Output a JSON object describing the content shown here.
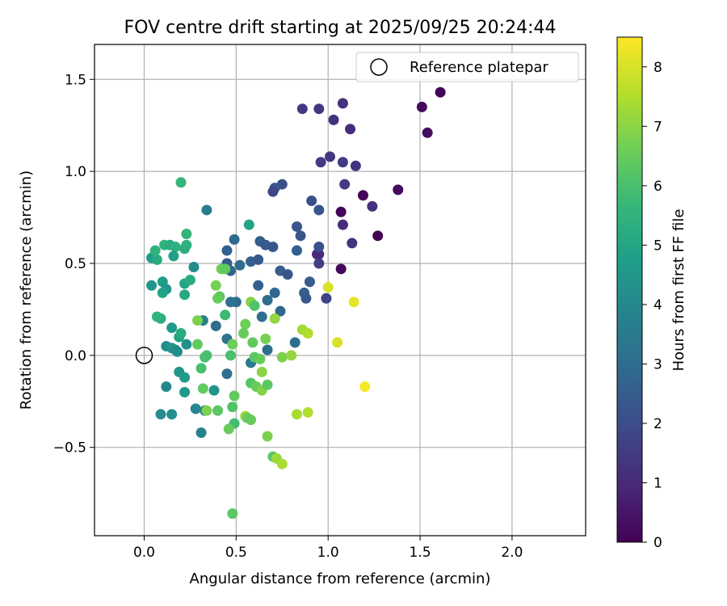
{
  "chart_data": {
    "type": "scatter",
    "title": "FOV centre drift starting at 2025/09/25 20:24:44",
    "xlabel": "Angular distance from reference (arcmin)",
    "ylabel": "Rotation from reference (arcmin)",
    "xlim": [
      -0.27,
      2.4
    ],
    "ylim": [
      -0.98,
      1.69
    ],
    "xticks": [
      0.0,
      0.5,
      1.0,
      1.5,
      2.0
    ],
    "xtick_labels": [
      "0.0",
      "0.5",
      "1.0",
      "1.5",
      "2.0"
    ],
    "yticks": [
      -0.5,
      0.0,
      0.5,
      1.0,
      1.5
    ],
    "ytick_labels": [
      "−0.5",
      "0.0",
      "0.5",
      "1.0",
      "1.5"
    ],
    "grid": true,
    "legend": {
      "position": "top-right",
      "entries": [
        "Reference platepar"
      ]
    },
    "reference_point": {
      "x": 0.0,
      "y": 0.0,
      "marker": "hollow-circle",
      "color": "#000000"
    },
    "colorbar": {
      "label": "Hours from first FF file",
      "range": [
        0,
        8.5
      ],
      "ticks": [
        0,
        1,
        2,
        3,
        4,
        5,
        6,
        7,
        8
      ],
      "tick_labels": [
        "0",
        "1",
        "2",
        "3",
        "4",
        "5",
        "6",
        "7",
        "8"
      ],
      "colormap_stops": [
        "#440154",
        "#482878",
        "#3e4989",
        "#31688e",
        "#26828e",
        "#1f9e89",
        "#35b779",
        "#6ece58",
        "#b5de2b",
        "#fde725"
      ]
    },
    "points": [
      {
        "x": 1.61,
        "y": 1.43,
        "t": 0.1
      },
      {
        "x": 1.51,
        "y": 1.35,
        "t": 0.2
      },
      {
        "x": 1.54,
        "y": 1.21,
        "t": 0.3
      },
      {
        "x": 1.38,
        "y": 0.9,
        "t": 0.2
      },
      {
        "x": 1.19,
        "y": 0.87,
        "t": 0.1
      },
      {
        "x": 1.27,
        "y": 0.65,
        "t": 0.0
      },
      {
        "x": 1.07,
        "y": 0.78,
        "t": 0.1
      },
      {
        "x": 1.07,
        "y": 0.47,
        "t": 0.2
      },
      {
        "x": 1.08,
        "y": 1.37,
        "t": 1.2
      },
      {
        "x": 0.95,
        "y": 1.34,
        "t": 1.4
      },
      {
        "x": 0.86,
        "y": 1.34,
        "t": 1.5
      },
      {
        "x": 1.12,
        "y": 1.23,
        "t": 1.1
      },
      {
        "x": 1.03,
        "y": 1.28,
        "t": 1.2
      },
      {
        "x": 1.01,
        "y": 1.08,
        "t": 1.4
      },
      {
        "x": 0.96,
        "y": 1.05,
        "t": 1.5
      },
      {
        "x": 1.08,
        "y": 1.05,
        "t": 1.5
      },
      {
        "x": 1.15,
        "y": 1.03,
        "t": 1.3
      },
      {
        "x": 1.09,
        "y": 0.93,
        "t": 1.5
      },
      {
        "x": 1.24,
        "y": 0.81,
        "t": 1.2
      },
      {
        "x": 1.08,
        "y": 0.71,
        "t": 1.1
      },
      {
        "x": 1.13,
        "y": 0.61,
        "t": 1.3
      },
      {
        "x": 0.95,
        "y": 0.55,
        "t": 1.2
      },
      {
        "x": 0.94,
        "y": 0.55,
        "t": 1.0
      },
      {
        "x": 0.95,
        "y": 0.5,
        "t": 1.6
      },
      {
        "x": 0.99,
        "y": 0.31,
        "t": 1.7
      },
      {
        "x": 0.75,
        "y": 0.93,
        "t": 2.1
      },
      {
        "x": 0.71,
        "y": 0.91,
        "t": 2.3
      },
      {
        "x": 0.7,
        "y": 0.89,
        "t": 1.8
      },
      {
        "x": 0.91,
        "y": 0.84,
        "t": 2.1
      },
      {
        "x": 0.95,
        "y": 0.79,
        "t": 2.3
      },
      {
        "x": 0.83,
        "y": 0.7,
        "t": 2.3
      },
      {
        "x": 0.85,
        "y": 0.65,
        "t": 2.3
      },
      {
        "x": 0.95,
        "y": 0.59,
        "t": 2.1
      },
      {
        "x": 0.83,
        "y": 0.57,
        "t": 2.6
      },
      {
        "x": 0.63,
        "y": 0.62,
        "t": 2.5
      },
      {
        "x": 0.66,
        "y": 0.6,
        "t": 2.4
      },
      {
        "x": 0.7,
        "y": 0.59,
        "t": 2.3
      },
      {
        "x": 0.58,
        "y": 0.51,
        "t": 2.6
      },
      {
        "x": 0.62,
        "y": 0.52,
        "t": 2.4
      },
      {
        "x": 0.74,
        "y": 0.46,
        "t": 2.5
      },
      {
        "x": 0.78,
        "y": 0.44,
        "t": 2.3
      },
      {
        "x": 0.9,
        "y": 0.4,
        "t": 2.5
      },
      {
        "x": 0.62,
        "y": 0.38,
        "t": 2.6
      },
      {
        "x": 0.71,
        "y": 0.34,
        "t": 2.8
      },
      {
        "x": 0.87,
        "y": 0.34,
        "t": 2.6
      },
      {
        "x": 0.88,
        "y": 0.31,
        "t": 2.4
      },
      {
        "x": 0.74,
        "y": 0.24,
        "t": 2.8
      },
      {
        "x": 0.67,
        "y": 0.3,
        "t": 3.0
      },
      {
        "x": 0.64,
        "y": 0.21,
        "t": 3.1
      },
      {
        "x": 0.45,
        "y": 0.57,
        "t": 2.6
      },
      {
        "x": 0.45,
        "y": 0.5,
        "t": 2.4
      },
      {
        "x": 0.47,
        "y": 0.46,
        "t": 2.7
      },
      {
        "x": 0.49,
        "y": 0.63,
        "t": 2.9
      },
      {
        "x": 0.52,
        "y": 0.49,
        "t": 3.0
      },
      {
        "x": 0.5,
        "y": 0.29,
        "t": 2.9
      },
      {
        "x": 0.47,
        "y": 0.29,
        "t": 3.2
      },
      {
        "x": 0.39,
        "y": 0.16,
        "t": 3.0
      },
      {
        "x": 0.45,
        "y": 0.09,
        "t": 3.2
      },
      {
        "x": 0.67,
        "y": 0.03,
        "t": 3.1
      },
      {
        "x": 0.82,
        "y": 0.07,
        "t": 3.1
      },
      {
        "x": 0.45,
        "y": -0.1,
        "t": 3.1
      },
      {
        "x": 0.58,
        "y": -0.04,
        "t": 3.4
      },
      {
        "x": 0.34,
        "y": 0.79,
        "t": 3.6
      },
      {
        "x": 0.57,
        "y": 0.71,
        "t": 4.9
      },
      {
        "x": 0.27,
        "y": 0.48,
        "t": 4.1
      },
      {
        "x": 0.32,
        "y": 0.19,
        "t": 3.7
      },
      {
        "x": 0.33,
        "y": -0.3,
        "t": 3.6
      },
      {
        "x": 0.31,
        "y": -0.42,
        "t": 3.8
      },
      {
        "x": 0.28,
        "y": -0.29,
        "t": 3.9
      },
      {
        "x": 0.38,
        "y": -0.19,
        "t": 4.4
      },
      {
        "x": 0.09,
        "y": -0.32,
        "t": 4.1
      },
      {
        "x": 0.15,
        "y": -0.32,
        "t": 4.2
      },
      {
        "x": 0.12,
        "y": -0.17,
        "t": 4.0
      },
      {
        "x": 0.19,
        "y": -0.09,
        "t": 4.4
      },
      {
        "x": 0.22,
        "y": -0.12,
        "t": 4.6
      },
      {
        "x": 0.22,
        "y": -0.2,
        "t": 4.6
      },
      {
        "x": 0.12,
        "y": 0.05,
        "t": 4.1
      },
      {
        "x": 0.15,
        "y": 0.04,
        "t": 4.5
      },
      {
        "x": 0.17,
        "y": 0.03,
        "t": 4.2
      },
      {
        "x": 0.18,
        "y": 0.02,
        "t": 4.1
      },
      {
        "x": 0.23,
        "y": 0.06,
        "t": 4.2
      },
      {
        "x": 0.19,
        "y": 0.1,
        "t": 4.9
      },
      {
        "x": 0.15,
        "y": 0.15,
        "t": 4.6
      },
      {
        "x": 0.2,
        "y": 0.12,
        "t": 5.2
      },
      {
        "x": 0.09,
        "y": 0.2,
        "t": 5.3
      },
      {
        "x": 0.07,
        "y": 0.21,
        "t": 5.5
      },
      {
        "x": 0.04,
        "y": 0.38,
        "t": 4.4
      },
      {
        "x": 0.1,
        "y": 0.4,
        "t": 4.7
      },
      {
        "x": 0.12,
        "y": 0.36,
        "t": 4.5
      },
      {
        "x": 0.1,
        "y": 0.34,
        "t": 4.9
      },
      {
        "x": 0.22,
        "y": 0.33,
        "t": 5.1
      },
      {
        "x": 0.22,
        "y": 0.39,
        "t": 5.0
      },
      {
        "x": 0.25,
        "y": 0.41,
        "t": 5.2
      },
      {
        "x": 0.04,
        "y": 0.53,
        "t": 4.7
      },
      {
        "x": 0.07,
        "y": 0.52,
        "t": 5.2
      },
      {
        "x": 0.06,
        "y": 0.57,
        "t": 5.5
      },
      {
        "x": 0.11,
        "y": 0.6,
        "t": 5.5
      },
      {
        "x": 0.14,
        "y": 0.6,
        "t": 5.3
      },
      {
        "x": 0.17,
        "y": 0.59,
        "t": 5.4
      },
      {
        "x": 0.16,
        "y": 0.54,
        "t": 4.8
      },
      {
        "x": 0.22,
        "y": 0.58,
        "t": 5.3
      },
      {
        "x": 0.23,
        "y": 0.6,
        "t": 5.4
      },
      {
        "x": 0.23,
        "y": 0.66,
        "t": 5.6
      },
      {
        "x": 0.2,
        "y": 0.94,
        "t": 5.6
      },
      {
        "x": 0.42,
        "y": 0.47,
        "t": 6.6
      },
      {
        "x": 0.44,
        "y": 0.47,
        "t": 6.4
      },
      {
        "x": 0.39,
        "y": 0.38,
        "t": 6.7
      },
      {
        "x": 0.41,
        "y": 0.32,
        "t": 6.3
      },
      {
        "x": 0.4,
        "y": 0.31,
        "t": 6.5
      },
      {
        "x": 0.44,
        "y": 0.22,
        "t": 5.8
      },
      {
        "x": 0.58,
        "y": 0.29,
        "t": 6.9
      },
      {
        "x": 0.6,
        "y": 0.27,
        "t": 6.1
      },
      {
        "x": 0.71,
        "y": 0.2,
        "t": 7.1
      },
      {
        "x": 0.55,
        "y": 0.17,
        "t": 6.6
      },
      {
        "x": 0.54,
        "y": 0.12,
        "t": 6.5
      },
      {
        "x": 0.59,
        "y": 0.07,
        "t": 6.4
      },
      {
        "x": 0.48,
        "y": 0.06,
        "t": 6.6
      },
      {
        "x": 0.66,
        "y": 0.09,
        "t": 6.7
      },
      {
        "x": 0.29,
        "y": 0.06,
        "t": 6.4
      },
      {
        "x": 0.29,
        "y": 0.19,
        "t": 6.8
      },
      {
        "x": 0.33,
        "y": -0.01,
        "t": 6.0
      },
      {
        "x": 0.34,
        "y": 0.0,
        "t": 6.0
      },
      {
        "x": 0.47,
        "y": 0.0,
        "t": 6.0
      },
      {
        "x": 0.6,
        "y": -0.01,
        "t": 6.3
      },
      {
        "x": 0.63,
        "y": -0.02,
        "t": 6.5
      },
      {
        "x": 0.75,
        "y": -0.01,
        "t": 6.8
      },
      {
        "x": 0.8,
        "y": 0.0,
        "t": 7.1
      },
      {
        "x": 0.31,
        "y": -0.07,
        "t": 6.0
      },
      {
        "x": 0.64,
        "y": -0.09,
        "t": 7.0
      },
      {
        "x": 0.58,
        "y": -0.15,
        "t": 6.2
      },
      {
        "x": 0.61,
        "y": -0.17,
        "t": 6.5
      },
      {
        "x": 0.64,
        "y": -0.19,
        "t": 6.9
      },
      {
        "x": 0.67,
        "y": -0.16,
        "t": 6.3
      },
      {
        "x": 0.49,
        "y": -0.22,
        "t": 6.4
      },
      {
        "x": 0.32,
        "y": -0.18,
        "t": 6.4
      },
      {
        "x": 0.34,
        "y": -0.3,
        "t": 6.8
      },
      {
        "x": 0.4,
        "y": -0.3,
        "t": 6.3
      },
      {
        "x": 0.48,
        "y": -0.28,
        "t": 6.1
      },
      {
        "x": 0.49,
        "y": -0.37,
        "t": 5.9
      },
      {
        "x": 0.46,
        "y": -0.4,
        "t": 6.5
      },
      {
        "x": 0.55,
        "y": -0.33,
        "t": 7.3
      },
      {
        "x": 0.58,
        "y": -0.35,
        "t": 6.5
      },
      {
        "x": 0.56,
        "y": -0.34,
        "t": 6.5
      },
      {
        "x": 0.67,
        "y": -0.44,
        "t": 6.8
      },
      {
        "x": 0.7,
        "y": -0.55,
        "t": 6.3
      },
      {
        "x": 0.72,
        "y": -0.56,
        "t": 7.2
      },
      {
        "x": 0.75,
        "y": -0.59,
        "t": 7.4
      },
      {
        "x": 0.48,
        "y": -0.86,
        "t": 6.3
      },
      {
        "x": 0.83,
        "y": -0.32,
        "t": 7.4
      },
      {
        "x": 0.89,
        "y": -0.31,
        "t": 7.5
      },
      {
        "x": 0.86,
        "y": 0.14,
        "t": 7.3
      },
      {
        "x": 0.89,
        "y": 0.12,
        "t": 7.5
      },
      {
        "x": 1.0,
        "y": 0.37,
        "t": 8.0
      },
      {
        "x": 1.14,
        "y": 0.29,
        "t": 8.2
      },
      {
        "x": 1.05,
        "y": 0.07,
        "t": 8.0
      },
      {
        "x": 1.2,
        "y": -0.17,
        "t": 8.4
      }
    ]
  }
}
